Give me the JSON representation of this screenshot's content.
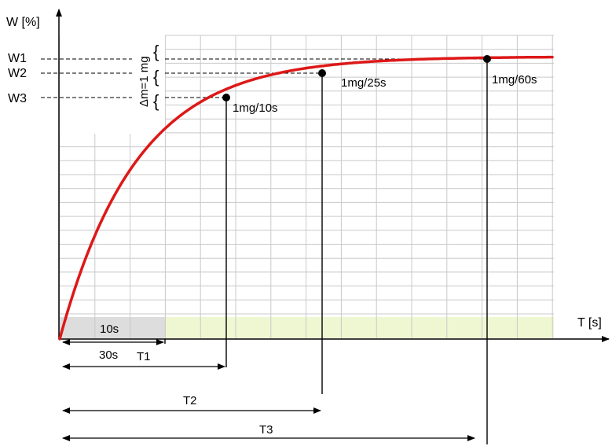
{
  "axes": {
    "y_label": "W [%]",
    "x_label": "T [s]"
  },
  "levels": {
    "w1": "W1",
    "w2": "W2",
    "w3": "W3"
  },
  "delta_label": "Δm=1 mg",
  "points": [
    {
      "label": "1mg/10s",
      "rate_mg": 1,
      "interval_s": 10
    },
    {
      "label": "1mg/25s",
      "rate_mg": 1,
      "interval_s": 25
    },
    {
      "label": "1mg/60s",
      "rate_mg": 1,
      "interval_s": 60
    }
  ],
  "intervals": {
    "short_window": "10s",
    "min_window": "30s",
    "t1": "T1",
    "t2": "T2",
    "t3": "T3"
  },
  "colors": {
    "curve": "#dd1818",
    "grid": "#c9c9c9",
    "band_gray": "#dddddd",
    "band_green": "#eef7d2",
    "axis": "#000000"
  }
}
